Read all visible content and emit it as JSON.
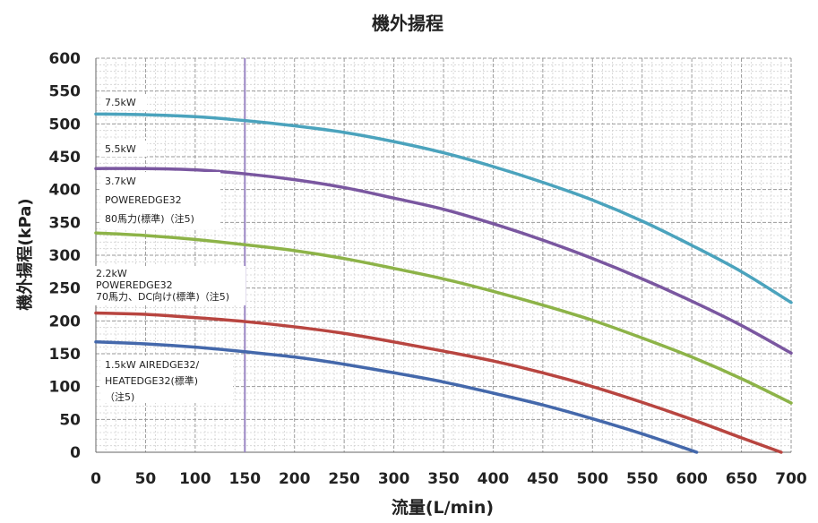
{
  "chart_data": {
    "type": "line",
    "title": "機外揚程",
    "xlabel": "流量(L/min)",
    "ylabel": "機外揚程(kPa)",
    "xlim": [
      0,
      700
    ],
    "ylim": [
      0,
      600
    ],
    "x_ticks": [
      "0",
      "50",
      "100",
      "150",
      "200",
      "250",
      "300",
      "350",
      "400",
      "450",
      "500",
      "550",
      "600",
      "650",
      "700"
    ],
    "y_ticks": [
      "0",
      "50",
      "100",
      "150",
      "200",
      "250",
      "300",
      "350",
      "400",
      "450",
      "500",
      "550",
      "600"
    ],
    "grid": true,
    "reference_line": {
      "x": 150,
      "color": "#9b87c4"
    },
    "series": [
      {
        "name": "7.5kW",
        "label_lines": [
          "7.5kW"
        ],
        "color": "#4ba3bd",
        "x": [
          0,
          50,
          100,
          150,
          200,
          250,
          300,
          350,
          400,
          450,
          500,
          550,
          600,
          650,
          700
        ],
        "y": [
          515,
          514,
          511,
          505,
          497,
          487,
          473,
          456,
          435,
          411,
          384,
          352,
          315,
          275,
          228
        ]
      },
      {
        "name": "5.5kW",
        "label_lines": [
          "5.5kW"
        ],
        "color": "#7a57a0",
        "x": [
          0,
          50,
          100,
          150,
          200,
          250,
          300,
          350,
          400,
          450,
          500,
          550,
          600,
          650,
          700
        ],
        "y": [
          432,
          432,
          430,
          424,
          415,
          403,
          387,
          370,
          348,
          323,
          295,
          264,
          230,
          193,
          151
        ]
      },
      {
        "name": "3.7kW",
        "label_lines": [
          "3.7kW",
          "POWEREDGE32",
          "80馬力(標準)（注5)"
        ],
        "color": "#8db348",
        "x": [
          0,
          50,
          100,
          150,
          200,
          250,
          300,
          350,
          400,
          450,
          500,
          550,
          600,
          650,
          700
        ],
        "y": [
          334,
          330,
          324,
          316,
          307,
          295,
          280,
          264,
          245,
          224,
          201,
          174,
          145,
          112,
          75
        ]
      },
      {
        "name": "2.2kW",
        "label_lines": [
          "2.2kW",
          "POWEREDGE32",
          "70馬力、DC向け(標準)（注5)"
        ],
        "color": "#b84540",
        "x": [
          0,
          50,
          100,
          150,
          200,
          250,
          300,
          350,
          400,
          450,
          500,
          550,
          600,
          650,
          690
        ],
        "y": [
          212,
          210,
          205,
          199,
          191,
          181,
          168,
          154,
          139,
          121,
          100,
          76,
          50,
          22,
          0
        ]
      },
      {
        "name": "1.5kW",
        "label_lines": [
          "1.5kW AIREDGE32/",
          "HEATEDGE32(標準)",
          "（注5)"
        ],
        "color": "#4468ab",
        "x": [
          0,
          50,
          100,
          150,
          200,
          250,
          300,
          350,
          400,
          450,
          500,
          550,
          605
        ],
        "y": [
          168,
          165,
          160,
          153,
          145,
          134,
          121,
          107,
          90,
          72,
          51,
          28,
          0
        ]
      }
    ]
  }
}
